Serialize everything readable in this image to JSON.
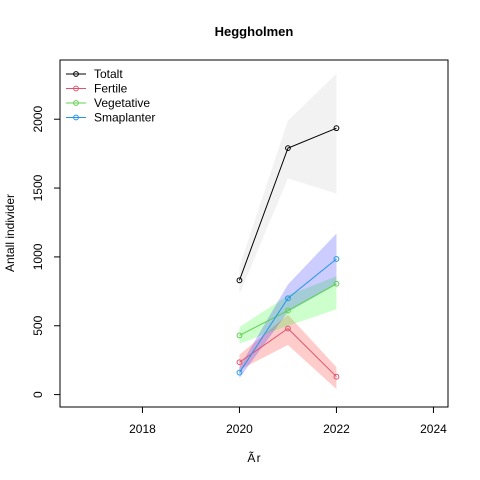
{
  "chart_data": {
    "type": "line",
    "title": "Heggholmen",
    "xlabel": "Ãr",
    "ylabel": "Antall individer",
    "xlim": [
      2016.3,
      2024.3
    ],
    "ylim": [
      -90,
      2430
    ],
    "xticks": [
      2018,
      2020,
      2022,
      2024
    ],
    "yticks": [
      0,
      500,
      1000,
      1500,
      2000
    ],
    "grid": false,
    "legend_position": "top-left",
    "series": [
      {
        "name": "Totalt",
        "color": "#000000",
        "band_color": "#bebebe",
        "x": [
          2020,
          2021,
          2022
        ],
        "y": [
          830,
          1790,
          1935
        ],
        "lower": [
          730,
          1570,
          1460
        ],
        "upper": [
          930,
          1990,
          2330
        ]
      },
      {
        "name": "Fertile",
        "color": "#df536b",
        "band_color": "#ff0000",
        "x": [
          2020,
          2021,
          2022
        ],
        "y": [
          235,
          480,
          130
        ],
        "lower": [
          180,
          360,
          40
        ],
        "upper": [
          290,
          580,
          200
        ]
      },
      {
        "name": "Vegetative",
        "color": "#61d04f",
        "band_color": "#00ff00",
        "x": [
          2020,
          2021,
          2022
        ],
        "y": [
          430,
          610,
          805
        ],
        "lower": [
          370,
          500,
          620
        ],
        "upper": [
          490,
          720,
          860
        ]
      },
      {
        "name": "Smaplanter",
        "color": "#2297e6",
        "band_color": "#0000ff",
        "x": [
          2020,
          2021,
          2022
        ],
        "y": [
          160,
          700,
          985
        ],
        "lower": [
          120,
          600,
          800
        ],
        "upper": [
          200,
          800,
          1170
        ]
      }
    ]
  }
}
